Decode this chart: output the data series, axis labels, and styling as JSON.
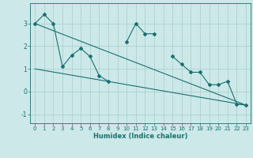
{
  "xlabel": "Humidex (Indice chaleur)",
  "x": [
    0,
    1,
    2,
    3,
    4,
    5,
    6,
    7,
    8,
    9,
    10,
    11,
    12,
    13,
    14,
    15,
    16,
    17,
    18,
    19,
    20,
    21,
    22,
    23
  ],
  "line1": [
    3.0,
    3.4,
    3.0,
    1.1,
    1.6,
    1.9,
    1.55,
    0.7,
    0.45,
    null,
    2.2,
    3.0,
    2.55,
    2.55,
    null,
    1.55,
    1.2,
    0.85,
    0.85,
    0.3,
    0.3,
    0.45,
    -0.55,
    -0.6
  ],
  "line2_x": [
    0,
    23
  ],
  "line2_y": [
    3.0,
    -0.6
  ],
  "line3_x": [
    0,
    23
  ],
  "line3_y": [
    1.0,
    -0.6
  ],
  "bg_color": "#cce8e8",
  "line_color": "#1a7070",
  "grid_color": "#aacccc",
  "ylim": [
    -1.4,
    3.9
  ],
  "xlim": [
    -0.5,
    23.5
  ],
  "yticks": [
    -1,
    0,
    1,
    2,
    3
  ],
  "xticks": [
    0,
    1,
    2,
    3,
    4,
    5,
    6,
    7,
    8,
    9,
    10,
    11,
    12,
    13,
    14,
    15,
    16,
    17,
    18,
    19,
    20,
    21,
    22,
    23
  ]
}
